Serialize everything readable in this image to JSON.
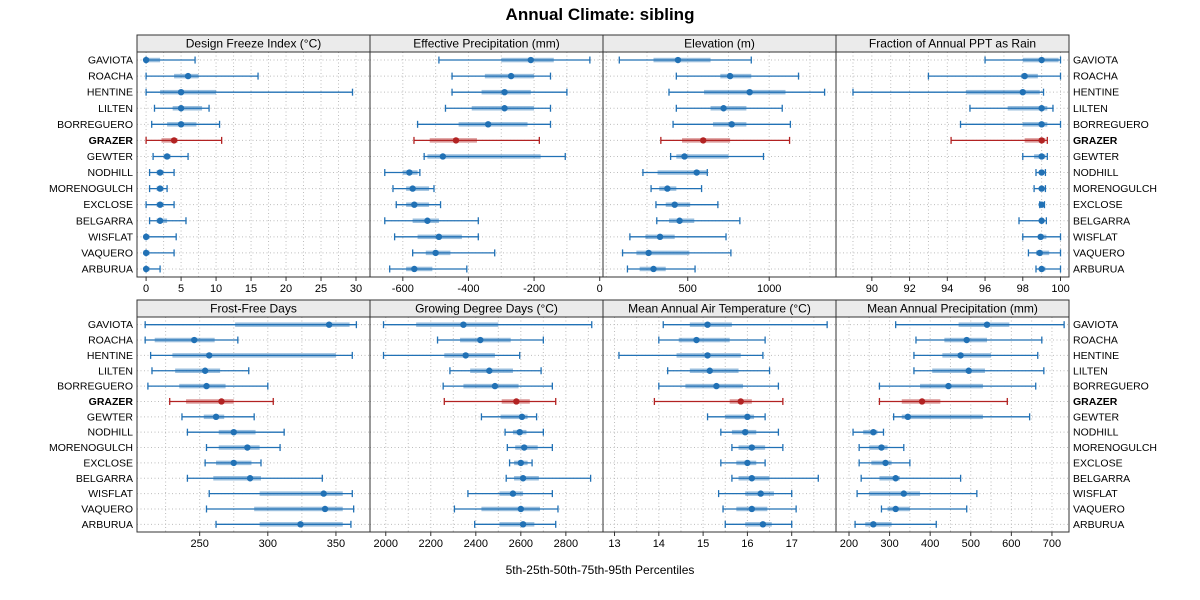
{
  "title": "Annual Climate: sibling",
  "footer": "5th-25th-50th-75th-95th Percentiles",
  "stations": [
    "GAVIOTA",
    "ROACHA",
    "HENTINE",
    "LILTEN",
    "BORREGUERO",
    "GRAZER",
    "GEWTER",
    "NODHILL",
    "MORENOGULCH",
    "EXCLOSE",
    "BELGARRA",
    "WISFLAT",
    "VAQUERO",
    "ARBURUA"
  ],
  "highlight_station": "GRAZER",
  "colors": {
    "normal": "#2171b5",
    "highlight": "#b22222",
    "band_opacity": 0.45,
    "strip_bg": "#ebebeb",
    "panel_border": "#333333",
    "grid": "#bdbdbd",
    "text": "#000000"
  },
  "chart_data": {
    "type": "trellis-interval-dotplot",
    "encoding": "thin line with end caps = 5th-95th percentile, thick band = 25th-75th percentile, dot = 50th percentile",
    "percentile_levels": [
      5,
      25,
      50,
      75,
      95
    ],
    "layout": {
      "rows": 2,
      "cols": 4,
      "grid": "dotted",
      "row_labels": "both-sides"
    },
    "panels": [
      {
        "title": "Design Freeze Index (°C)",
        "xlim": [
          -1.3,
          32
        ],
        "ticks": [
          0,
          5,
          10,
          15,
          20,
          25,
          30
        ],
        "gridlines": [
          0,
          2.5,
          5,
          7.5,
          10,
          12.5,
          15,
          17.5,
          20,
          22.5,
          25,
          27.5,
          30
        ],
        "values": [
          [
            0,
            0,
            0,
            2,
            7
          ],
          [
            0,
            4,
            6,
            7.5,
            16
          ],
          [
            0,
            2,
            5,
            10,
            29.5
          ],
          [
            1.2,
            3.8,
            5,
            8,
            9
          ],
          [
            0.8,
            3,
            5,
            7.2,
            10.5
          ],
          [
            0,
            2.2,
            4,
            4.5,
            10.8
          ],
          [
            1,
            2.5,
            3,
            3.5,
            6
          ],
          [
            0.5,
            1.5,
            2,
            2.5,
            4
          ],
          [
            0.5,
            1.5,
            2,
            2.5,
            3
          ],
          [
            0,
            1.5,
            2,
            2.5,
            4
          ],
          [
            0.5,
            1.5,
            2,
            3,
            5.7
          ],
          [
            0,
            0,
            0,
            0.5,
            4.3
          ],
          [
            0,
            0,
            0,
            0.5,
            4
          ],
          [
            0,
            0,
            0,
            0.5,
            2
          ]
        ]
      },
      {
        "title": "Effective Precipitation (mm)",
        "xlim": [
          -700,
          10
        ],
        "ticks": [
          -600,
          -400,
          -200,
          0
        ],
        "gridlines": [
          -600,
          -500,
          -400,
          -300,
          -200,
          -100,
          0
        ],
        "values": [
          [
            -490,
            -300,
            -210,
            -140,
            -30
          ],
          [
            -450,
            -350,
            -270,
            -200,
            -150
          ],
          [
            -450,
            -360,
            -290,
            -210,
            -100
          ],
          [
            -470,
            -390,
            -290,
            -200,
            -150
          ],
          [
            -555,
            -430,
            -340,
            -220,
            -150
          ],
          [
            -566,
            -518,
            -438,
            -374,
            -184
          ],
          [
            -535,
            -525,
            -478,
            -180,
            -105
          ],
          [
            -655,
            -600,
            -580,
            -555,
            -548
          ],
          [
            -630,
            -590,
            -570,
            -520,
            -505
          ],
          [
            -620,
            -590,
            -565,
            -520,
            -485
          ],
          [
            -655,
            -570,
            -525,
            -490,
            -370
          ],
          [
            -625,
            -555,
            -490,
            -420,
            -370
          ],
          [
            -570,
            -530,
            -500,
            -455,
            -320
          ],
          [
            -640,
            -590,
            -565,
            -510,
            -405
          ]
        ]
      },
      {
        "title": "Elevation (m)",
        "xlim": [
          -20,
          1410
        ],
        "ticks": [
          500,
          1000
        ],
        "gridlines": [
          0,
          250,
          500,
          750,
          1000,
          1250
        ],
        "values": [
          [
            80,
            290,
            440,
            640,
            890
          ],
          [
            430,
            700,
            760,
            890,
            1180
          ],
          [
            385,
            600,
            880,
            1100,
            1340
          ],
          [
            430,
            640,
            720,
            860,
            1080
          ],
          [
            410,
            655,
            770,
            860,
            1130
          ],
          [
            335,
            465,
            595,
            760,
            1125
          ],
          [
            395,
            430,
            480,
            750,
            965
          ],
          [
            225,
            315,
            555,
            615,
            620
          ],
          [
            275,
            325,
            375,
            430,
            585
          ],
          [
            305,
            365,
            420,
            515,
            685
          ],
          [
            310,
            385,
            450,
            540,
            820
          ],
          [
            145,
            240,
            330,
            420,
            735
          ],
          [
            100,
            185,
            260,
            510,
            765
          ],
          [
            130,
            205,
            290,
            365,
            545
          ]
        ]
      },
      {
        "title": "Fraction of Annual PPT as Rain",
        "xlim": [
          88.1,
          100.45
        ],
        "ticks": [
          90,
          92,
          94,
          96,
          98,
          100
        ],
        "gridlines": [
          89,
          90,
          91,
          92,
          93,
          94,
          95,
          96,
          97,
          98,
          99,
          100
        ],
        "values": [
          [
            96,
            98,
            99,
            99.9,
            100
          ],
          [
            93,
            97.9,
            98.1,
            98.8,
            100
          ],
          [
            89,
            95,
            98,
            98.9,
            99.1
          ],
          [
            95.2,
            97.2,
            99,
            99.3,
            99.6
          ],
          [
            94.7,
            98,
            99,
            99.3,
            100
          ],
          [
            94.2,
            98.1,
            99,
            99.2,
            99.3
          ],
          [
            98,
            98.6,
            99,
            99.2,
            99.3
          ],
          [
            98.7,
            98.9,
            99,
            99.1,
            99.2
          ],
          [
            98.6,
            98.9,
            99,
            99.1,
            99.2
          ],
          [
            98.9,
            99,
            99,
            99.1,
            99.15
          ],
          [
            97.8,
            98.9,
            99,
            99.1,
            99.25
          ],
          [
            98,
            98.8,
            98.95,
            99.25,
            100
          ],
          [
            98.3,
            98.7,
            98.9,
            99.4,
            100
          ],
          [
            98.7,
            98.9,
            99,
            99.2,
            100
          ]
        ]
      },
      {
        "title": "Frost-Free Days",
        "xlim": [
          204,
          375
        ],
        "ticks": [
          250,
          300,
          350
        ],
        "gridlines": [
          225,
          250,
          275,
          300,
          325,
          350
        ],
        "values": [
          [
            210,
            276,
            345,
            360,
            365
          ],
          [
            210,
            217,
            246,
            261,
            278
          ],
          [
            214,
            230,
            257,
            350,
            362
          ],
          [
            215,
            232,
            254,
            265,
            286
          ],
          [
            212,
            235,
            255,
            269,
            300
          ],
          [
            228,
            240,
            266,
            275,
            304
          ],
          [
            237,
            253,
            262,
            268,
            290
          ],
          [
            241,
            264,
            275,
            291,
            312
          ],
          [
            255,
            264,
            285,
            294,
            309
          ],
          [
            254,
            262,
            275,
            288,
            295
          ],
          [
            241,
            260,
            287,
            295,
            340
          ],
          [
            257,
            294,
            341,
            355,
            362
          ],
          [
            255,
            290,
            342,
            355,
            363
          ],
          [
            262,
            294,
            324,
            355,
            361
          ]
        ]
      },
      {
        "title": "Growing Degree Days (°C)",
        "xlim": [
          1930,
          2965
        ],
        "ticks": [
          2000,
          2200,
          2400,
          2600,
          2800
        ],
        "gridlines": [
          2000,
          2100,
          2200,
          2300,
          2400,
          2500,
          2600,
          2700,
          2800,
          2900
        ],
        "values": [
          [
            1990,
            2135,
            2345,
            2500,
            2915
          ],
          [
            2230,
            2330,
            2420,
            2555,
            2700
          ],
          [
            1990,
            2260,
            2355,
            2485,
            2595
          ],
          [
            2285,
            2375,
            2460,
            2565,
            2690
          ],
          [
            2255,
            2345,
            2485,
            2590,
            2740
          ],
          [
            2260,
            2515,
            2580,
            2640,
            2755
          ],
          [
            2425,
            2510,
            2605,
            2630,
            2670
          ],
          [
            2530,
            2565,
            2595,
            2625,
            2700
          ],
          [
            2540,
            2575,
            2615,
            2675,
            2740
          ],
          [
            2550,
            2570,
            2600,
            2630,
            2650
          ],
          [
            2535,
            2570,
            2610,
            2680,
            2910
          ],
          [
            2365,
            2505,
            2565,
            2610,
            2740
          ],
          [
            2305,
            2425,
            2600,
            2685,
            2765
          ],
          [
            2395,
            2505,
            2610,
            2660,
            2755
          ]
        ]
      },
      {
        "title": "Mean Annual Air Temperature (°C)",
        "xlim": [
          12.74,
          18.0
        ],
        "ticks": [
          13,
          14,
          15,
          16,
          17
        ],
        "gridlines": [
          13,
          13.5,
          14,
          14.5,
          15,
          15.5,
          16,
          16.5,
          17,
          17.5
        ],
        "values": [
          [
            14.1,
            14.7,
            15.1,
            15.65,
            17.8
          ],
          [
            14.0,
            14.45,
            14.85,
            15.6,
            16.4
          ],
          [
            13.1,
            14.4,
            15.1,
            15.85,
            16.35
          ],
          [
            14.2,
            14.7,
            15.15,
            15.8,
            16.5
          ],
          [
            14.0,
            14.6,
            15.3,
            15.9,
            16.7
          ],
          [
            13.9,
            15.6,
            15.85,
            16.1,
            16.8
          ],
          [
            15.1,
            15.5,
            16.0,
            16.15,
            16.4
          ],
          [
            15.4,
            15.65,
            15.95,
            16.2,
            16.7
          ],
          [
            15.65,
            15.8,
            16.1,
            16.4,
            16.8
          ],
          [
            15.4,
            15.75,
            16.0,
            16.2,
            16.4
          ],
          [
            15.65,
            15.8,
            16.1,
            16.5,
            17.6
          ],
          [
            15.35,
            15.95,
            16.3,
            16.6,
            17.0
          ],
          [
            15.45,
            15.75,
            16.1,
            16.45,
            17.1
          ],
          [
            15.5,
            15.95,
            16.35,
            16.55,
            17.0
          ]
        ]
      },
      {
        "title": "Mean Annual Precipitation (mm)",
        "xlim": [
          168,
          742
        ],
        "ticks": [
          200,
          300,
          400,
          500,
          600,
          700
        ],
        "gridlines": [
          200,
          250,
          300,
          350,
          400,
          450,
          500,
          550,
          600,
          650,
          700
        ],
        "values": [
          [
            315,
            470,
            540,
            595,
            730
          ],
          [
            365,
            435,
            490,
            540,
            675
          ],
          [
            360,
            430,
            475,
            550,
            665
          ],
          [
            360,
            405,
            495,
            535,
            680
          ],
          [
            275,
            375,
            445,
            530,
            660
          ],
          [
            275,
            330,
            380,
            425,
            590
          ],
          [
            310,
            330,
            345,
            530,
            645
          ],
          [
            210,
            235,
            260,
            270,
            285
          ],
          [
            225,
            250,
            280,
            295,
            335
          ],
          [
            225,
            255,
            290,
            305,
            350
          ],
          [
            230,
            275,
            315,
            325,
            475
          ],
          [
            220,
            250,
            335,
            375,
            515
          ],
          [
            280,
            295,
            315,
            350,
            490
          ],
          [
            215,
            240,
            260,
            305,
            415
          ]
        ]
      }
    ]
  }
}
